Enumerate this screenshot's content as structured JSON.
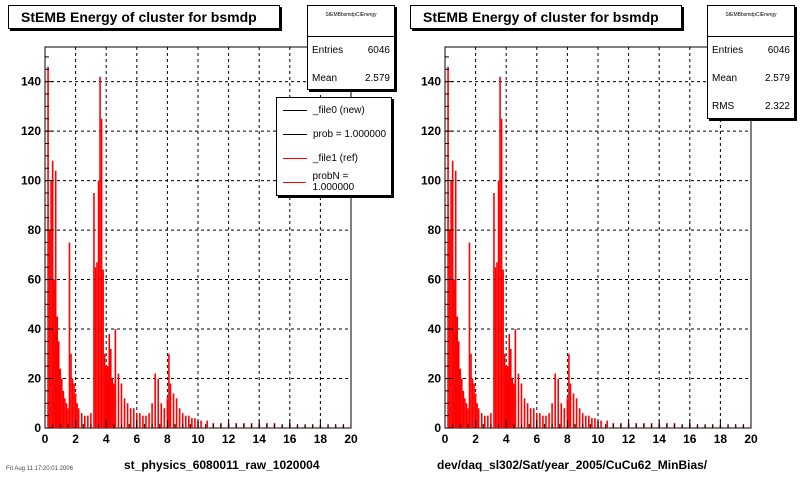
{
  "colors": {
    "ref": "#ff0000",
    "new": "#000000",
    "grid": "#000000"
  },
  "panels": [
    {
      "title": "StEMB Energy of cluster for bsmdp",
      "xlabel": "st_physics_6080011_raw_1020004",
      "stats": {
        "name": "StEMBbsmdpClEnergy",
        "rows": [
          {
            "label": "Entries",
            "value": "6046"
          },
          {
            "label": "Mean",
            "value": "2.579"
          }
        ]
      },
      "legend": [
        {
          "label": "_file0 (new)",
          "color": "#000000"
        },
        {
          "label": "prob = 1.000000",
          "color": "#000000"
        },
        {
          "label": "_file1 (ref)",
          "color": "#ff0000"
        },
        {
          "label": "probN = 1.000000",
          "color": "#ff0000"
        }
      ]
    },
    {
      "title": "StEMB Energy of cluster for bsmdp",
      "xlabel": "dev/daq_sl302/Sat/year_2005/CuCu62_MinBias/",
      "stats": {
        "name": "StEMBbsmdpClEnergy",
        "rows": [
          {
            "label": "Entries",
            "value": "6046"
          },
          {
            "label": "Mean",
            "value": "2.579"
          },
          {
            "label": "RMS",
            "value": "2.322"
          }
        ]
      },
      "legend": []
    }
  ],
  "footer": "Fri Aug 11 17:20:01 2006",
  "chart_data": [
    {
      "type": "bar",
      "title": "StEMB Energy of cluster for bsmdp",
      "xlabel": "st_physics_6080011_raw_1020004",
      "xlim": [
        0,
        20
      ],
      "ylim": [
        0,
        154
      ],
      "xticks": [
        "0",
        "2",
        "4",
        "6",
        "8",
        "10",
        "12",
        "14",
        "16",
        "18",
        "20"
      ],
      "yticks": [
        "0",
        "20",
        "40",
        "60",
        "80",
        "100",
        "120",
        "140"
      ],
      "grid": true,
      "series": [
        {
          "name": "_file1 (ref)",
          "color": "#ff0000",
          "x": [
            0.2,
            0.3,
            0.4,
            0.5,
            0.6,
            0.7,
            0.8,
            0.9,
            1.0,
            1.1,
            1.2,
            1.3,
            1.4,
            1.5,
            1.6,
            1.7,
            1.8,
            1.9,
            2.0,
            2.1,
            2.2,
            2.4,
            2.6,
            2.8,
            3.0,
            3.2,
            3.3,
            3.4,
            3.5,
            3.6,
            3.7,
            3.8,
            3.9,
            4.0,
            4.1,
            4.2,
            4.3,
            4.4,
            4.5,
            4.6,
            4.8,
            5.0,
            5.2,
            5.4,
            5.6,
            5.8,
            6.0,
            6.2,
            6.4,
            6.6,
            6.8,
            7.0,
            7.2,
            7.4,
            7.6,
            7.8,
            8.0,
            8.1,
            8.2,
            8.4,
            8.6,
            8.8,
            9.0,
            9.2,
            9.4,
            9.6,
            9.8,
            10.0,
            10.2,
            10.6,
            11.0,
            11.5,
            12.0,
            12.5,
            13.0,
            13.5,
            14.0,
            14.5,
            15.0,
            15.5,
            16.0,
            16.5,
            17.0,
            17.5,
            18.0,
            18.5,
            19.0,
            19.5
          ],
          "y": [
            146,
            80,
            100,
            108,
            60,
            104,
            45,
            35,
            24,
            20,
            15,
            12,
            10,
            8,
            75,
            30,
            20,
            18,
            14,
            10,
            8,
            6,
            5,
            5,
            6,
            95,
            65,
            67,
            100,
            142,
            125,
            64,
            30,
            25,
            25,
            38,
            32,
            20,
            18,
            40,
            22,
            18,
            12,
            10,
            8,
            8,
            6,
            6,
            5,
            5,
            6,
            10,
            22,
            20,
            10,
            8,
            12,
            30,
            18,
            14,
            12,
            8,
            6,
            5,
            5,
            4,
            4,
            3,
            3,
            3,
            2,
            2,
            2,
            2,
            2,
            2,
            2,
            2,
            2,
            1,
            2,
            1,
            1,
            1,
            1,
            1,
            1,
            1
          ]
        }
      ]
    },
    {
      "type": "bar",
      "title": "StEMB Energy of cluster for bsmdp",
      "xlabel": "dev/daq_sl302/Sat/year_2005/CuCu62_MinBias/",
      "xlim": [
        0,
        20
      ],
      "ylim": [
        0,
        154
      ],
      "xticks": [
        "0",
        "2",
        "4",
        "6",
        "8",
        "10",
        "12",
        "14",
        "16",
        "18",
        "20"
      ],
      "yticks": [
        "0",
        "20",
        "40",
        "60",
        "80",
        "100",
        "120",
        "140"
      ],
      "grid": true,
      "series": [
        {
          "name": "",
          "color": "#ff0000",
          "x": [
            0.2,
            0.3,
            0.4,
            0.5,
            0.6,
            0.7,
            0.8,
            0.9,
            1.0,
            1.1,
            1.2,
            1.3,
            1.4,
            1.5,
            1.6,
            1.7,
            1.8,
            1.9,
            2.0,
            2.1,
            2.2,
            2.4,
            2.6,
            2.8,
            3.0,
            3.2,
            3.3,
            3.4,
            3.5,
            3.6,
            3.7,
            3.8,
            3.9,
            4.0,
            4.1,
            4.2,
            4.3,
            4.4,
            4.5,
            4.6,
            4.8,
            5.0,
            5.2,
            5.4,
            5.6,
            5.8,
            6.0,
            6.2,
            6.4,
            6.6,
            6.8,
            7.0,
            7.2,
            7.4,
            7.6,
            7.8,
            8.0,
            8.1,
            8.2,
            8.4,
            8.6,
            8.8,
            9.0,
            9.2,
            9.4,
            9.6,
            9.8,
            10.0,
            10.2,
            10.6,
            11.0,
            11.5,
            12.0,
            12.5,
            13.0,
            13.5,
            14.0,
            14.5,
            15.0,
            15.5,
            16.0,
            16.5,
            17.0,
            17.5,
            18.0,
            18.5,
            19.0,
            19.5
          ],
          "y": [
            146,
            80,
            100,
            108,
            60,
            104,
            45,
            35,
            24,
            20,
            15,
            12,
            10,
            8,
            75,
            30,
            20,
            18,
            14,
            10,
            8,
            6,
            5,
            5,
            6,
            95,
            65,
            67,
            100,
            142,
            125,
            64,
            30,
            25,
            25,
            38,
            32,
            20,
            18,
            40,
            22,
            18,
            12,
            10,
            8,
            8,
            6,
            6,
            5,
            5,
            6,
            10,
            22,
            20,
            10,
            8,
            12,
            30,
            18,
            14,
            12,
            8,
            6,
            5,
            5,
            4,
            4,
            3,
            3,
            3,
            2,
            2,
            2,
            2,
            2,
            2,
            2,
            2,
            2,
            1,
            2,
            1,
            1,
            1,
            1,
            1,
            1,
            1
          ]
        }
      ]
    }
  ]
}
